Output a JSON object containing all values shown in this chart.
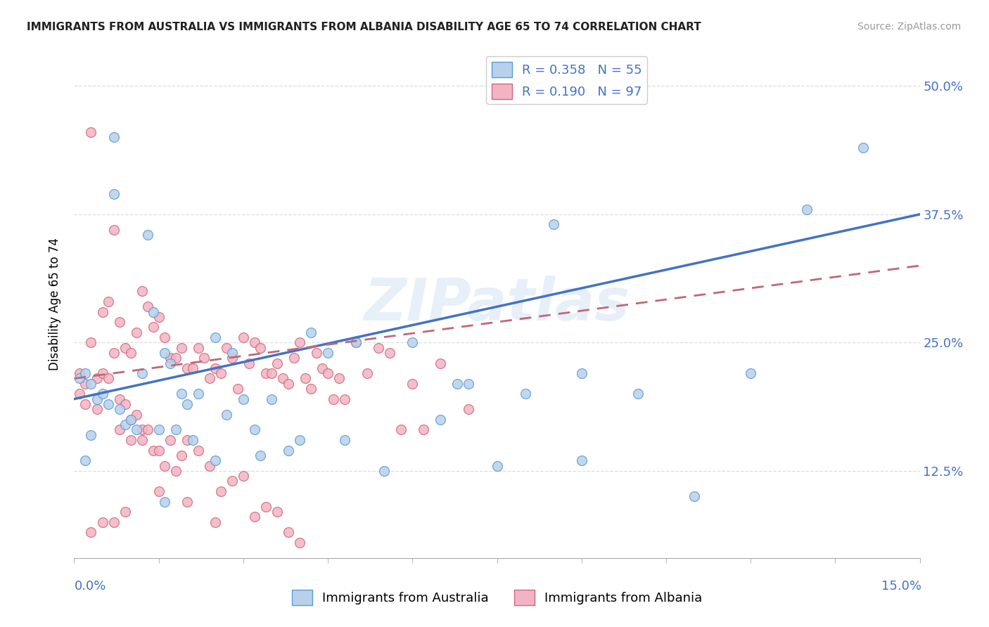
{
  "title": "IMMIGRANTS FROM AUSTRALIA VS IMMIGRANTS FROM ALBANIA DISABILITY AGE 65 TO 74 CORRELATION CHART",
  "source": "Source: ZipAtlas.com",
  "ylabel": "Disability Age 65 to 74",
  "ytick_values": [
    0.125,
    0.25,
    0.375,
    0.5
  ],
  "ytick_labels": [
    "12.5%",
    "25.0%",
    "37.5%",
    "50.0%"
  ],
  "xmin": 0.0,
  "xmax": 0.15,
  "ymin": 0.04,
  "ymax": 0.535,
  "r_australia": "0.358",
  "n_australia": "55",
  "r_albania": "0.190",
  "n_albania": "97",
  "color_australia_fill": "#b8d0ea",
  "color_australia_edge": "#5b9bd5",
  "color_albania_fill": "#f2b4c4",
  "color_albania_edge": "#d06878",
  "line_color_australia": "#4472c4",
  "line_color_albania": "#c06878",
  "watermark": "ZIPatlas",
  "label_australia": "Immigrants from Australia",
  "label_albania": "Immigrants from Albania",
  "aus_line_x0": 0.0,
  "aus_line_y0": 0.195,
  "aus_line_x1": 0.15,
  "aus_line_y1": 0.375,
  "alb_line_x0": 0.0,
  "alb_line_y0": 0.215,
  "alb_line_x1": 0.15,
  "alb_line_y1": 0.325,
  "aus_x": [
    0.001,
    0.002,
    0.003,
    0.004,
    0.005,
    0.006,
    0.007,
    0.008,
    0.009,
    0.01,
    0.011,
    0.012,
    0.013,
    0.014,
    0.015,
    0.016,
    0.017,
    0.018,
    0.019,
    0.02,
    0.021,
    0.022,
    0.025,
    0.027,
    0.028,
    0.03,
    0.032,
    0.035,
    0.038,
    0.04,
    0.042,
    0.045,
    0.05,
    0.055,
    0.06,
    0.065,
    0.07,
    0.075,
    0.08,
    0.085,
    0.09,
    0.1,
    0.11,
    0.12,
    0.13,
    0.14,
    0.003,
    0.007,
    0.016,
    0.025,
    0.033,
    0.048,
    0.068,
    0.09,
    0.002
  ],
  "aus_y": [
    0.215,
    0.22,
    0.21,
    0.195,
    0.2,
    0.19,
    0.45,
    0.185,
    0.17,
    0.175,
    0.165,
    0.22,
    0.355,
    0.28,
    0.165,
    0.24,
    0.23,
    0.165,
    0.2,
    0.19,
    0.155,
    0.2,
    0.255,
    0.18,
    0.24,
    0.195,
    0.165,
    0.195,
    0.145,
    0.155,
    0.26,
    0.24,
    0.25,
    0.125,
    0.25,
    0.175,
    0.21,
    0.13,
    0.2,
    0.365,
    0.22,
    0.2,
    0.1,
    0.22,
    0.38,
    0.44,
    0.16,
    0.395,
    0.095,
    0.135,
    0.14,
    0.155,
    0.21,
    0.135,
    0.135
  ],
  "alb_x": [
    0.001,
    0.002,
    0.003,
    0.004,
    0.005,
    0.006,
    0.007,
    0.008,
    0.009,
    0.01,
    0.011,
    0.012,
    0.013,
    0.014,
    0.015,
    0.016,
    0.017,
    0.018,
    0.019,
    0.02,
    0.021,
    0.022,
    0.023,
    0.024,
    0.025,
    0.026,
    0.027,
    0.028,
    0.029,
    0.03,
    0.031,
    0.032,
    0.033,
    0.034,
    0.035,
    0.036,
    0.037,
    0.038,
    0.039,
    0.04,
    0.041,
    0.042,
    0.043,
    0.044,
    0.045,
    0.046,
    0.047,
    0.048,
    0.05,
    0.052,
    0.054,
    0.056,
    0.058,
    0.06,
    0.062,
    0.065,
    0.07,
    0.008,
    0.01,
    0.012,
    0.001,
    0.002,
    0.003,
    0.004,
    0.005,
    0.006,
    0.007,
    0.008,
    0.009,
    0.01,
    0.011,
    0.012,
    0.013,
    0.014,
    0.015,
    0.016,
    0.017,
    0.018,
    0.019,
    0.02,
    0.022,
    0.024,
    0.026,
    0.028,
    0.03,
    0.032,
    0.034,
    0.036,
    0.038,
    0.04,
    0.003,
    0.005,
    0.007,
    0.009,
    0.015,
    0.02,
    0.025
  ],
  "alb_y": [
    0.22,
    0.19,
    0.25,
    0.215,
    0.28,
    0.29,
    0.24,
    0.27,
    0.245,
    0.24,
    0.26,
    0.3,
    0.285,
    0.265,
    0.275,
    0.255,
    0.235,
    0.235,
    0.245,
    0.225,
    0.225,
    0.245,
    0.235,
    0.215,
    0.225,
    0.22,
    0.245,
    0.235,
    0.205,
    0.255,
    0.23,
    0.25,
    0.245,
    0.22,
    0.22,
    0.23,
    0.215,
    0.21,
    0.235,
    0.25,
    0.215,
    0.205,
    0.24,
    0.225,
    0.22,
    0.195,
    0.215,
    0.195,
    0.25,
    0.22,
    0.245,
    0.24,
    0.165,
    0.21,
    0.165,
    0.23,
    0.185,
    0.195,
    0.155,
    0.165,
    0.2,
    0.21,
    0.455,
    0.185,
    0.22,
    0.215,
    0.36,
    0.165,
    0.19,
    0.175,
    0.18,
    0.155,
    0.165,
    0.145,
    0.145,
    0.13,
    0.155,
    0.125,
    0.14,
    0.155,
    0.145,
    0.13,
    0.105,
    0.115,
    0.12,
    0.08,
    0.09,
    0.085,
    0.065,
    0.055,
    0.065,
    0.075,
    0.075,
    0.085,
    0.105,
    0.095,
    0.075
  ]
}
